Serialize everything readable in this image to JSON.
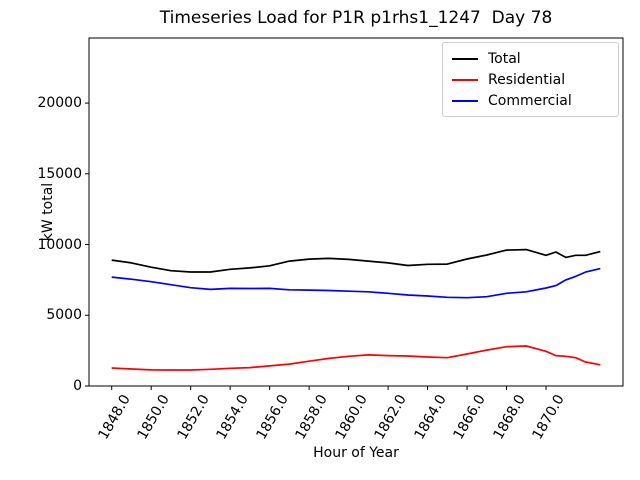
{
  "chart_data": {
    "type": "line",
    "title": "Timeseries Load for P1R p1rhs1_1247  Day 78",
    "xlabel": "Hour of Year",
    "ylabel": "kW total",
    "grid": false,
    "legend_position": "upper right",
    "xlim": [
      1846.85,
      1873.9
    ],
    "ylim": [
      0,
      24600
    ],
    "xticks": [
      1848,
      1850,
      1852,
      1854,
      1856,
      1858,
      1860,
      1862,
      1864,
      1866,
      1868,
      1870
    ],
    "xtick_labels": [
      "1848.0",
      "1850.0",
      "1852.0",
      "1854.0",
      "1856.0",
      "1858.0",
      "1860.0",
      "1862.0",
      "1864.0",
      "1866.0",
      "1868.0",
      "1870.0"
    ],
    "yticks": [
      0,
      5000,
      10000,
      15000,
      20000
    ],
    "ytick_labels": [
      "0",
      "5000",
      "10000",
      "15000",
      "20000"
    ],
    "x": [
      1848,
      1849,
      1850,
      1851,
      1852,
      1853,
      1854,
      1855,
      1856,
      1857,
      1858,
      1859,
      1860,
      1861,
      1862,
      1863,
      1864,
      1865,
      1866,
      1867,
      1868,
      1869,
      1870,
      1870.5,
      1871,
      1871.5,
      1872,
      1872.75
    ],
    "series": [
      {
        "name": "Total",
        "color": "#000000",
        "values": [
          8900,
          8700,
          8400,
          8150,
          8060,
          8060,
          8250,
          8350,
          8500,
          8830,
          8970,
          9020,
          8950,
          8830,
          8700,
          8520,
          8600,
          8620,
          8980,
          9260,
          9610,
          9640,
          9240,
          9470,
          9090,
          9240,
          9240,
          9500
        ]
      },
      {
        "name": "Residential",
        "color": "#ff0000",
        "values": [
          1270,
          1200,
          1140,
          1130,
          1130,
          1180,
          1250,
          1300,
          1420,
          1550,
          1750,
          1950,
          2100,
          2200,
          2150,
          2120,
          2050,
          2000,
          2260,
          2540,
          2780,
          2830,
          2450,
          2150,
          2100,
          2000,
          1700,
          1500
        ]
      },
      {
        "name": "Commercial",
        "color": "#0000ff",
        "values": [
          7700,
          7550,
          7370,
          7160,
          6950,
          6830,
          6900,
          6890,
          6900,
          6800,
          6780,
          6750,
          6700,
          6660,
          6550,
          6430,
          6360,
          6270,
          6240,
          6310,
          6550,
          6660,
          6930,
          7100,
          7500,
          7750,
          8050,
          8300
        ]
      }
    ]
  }
}
